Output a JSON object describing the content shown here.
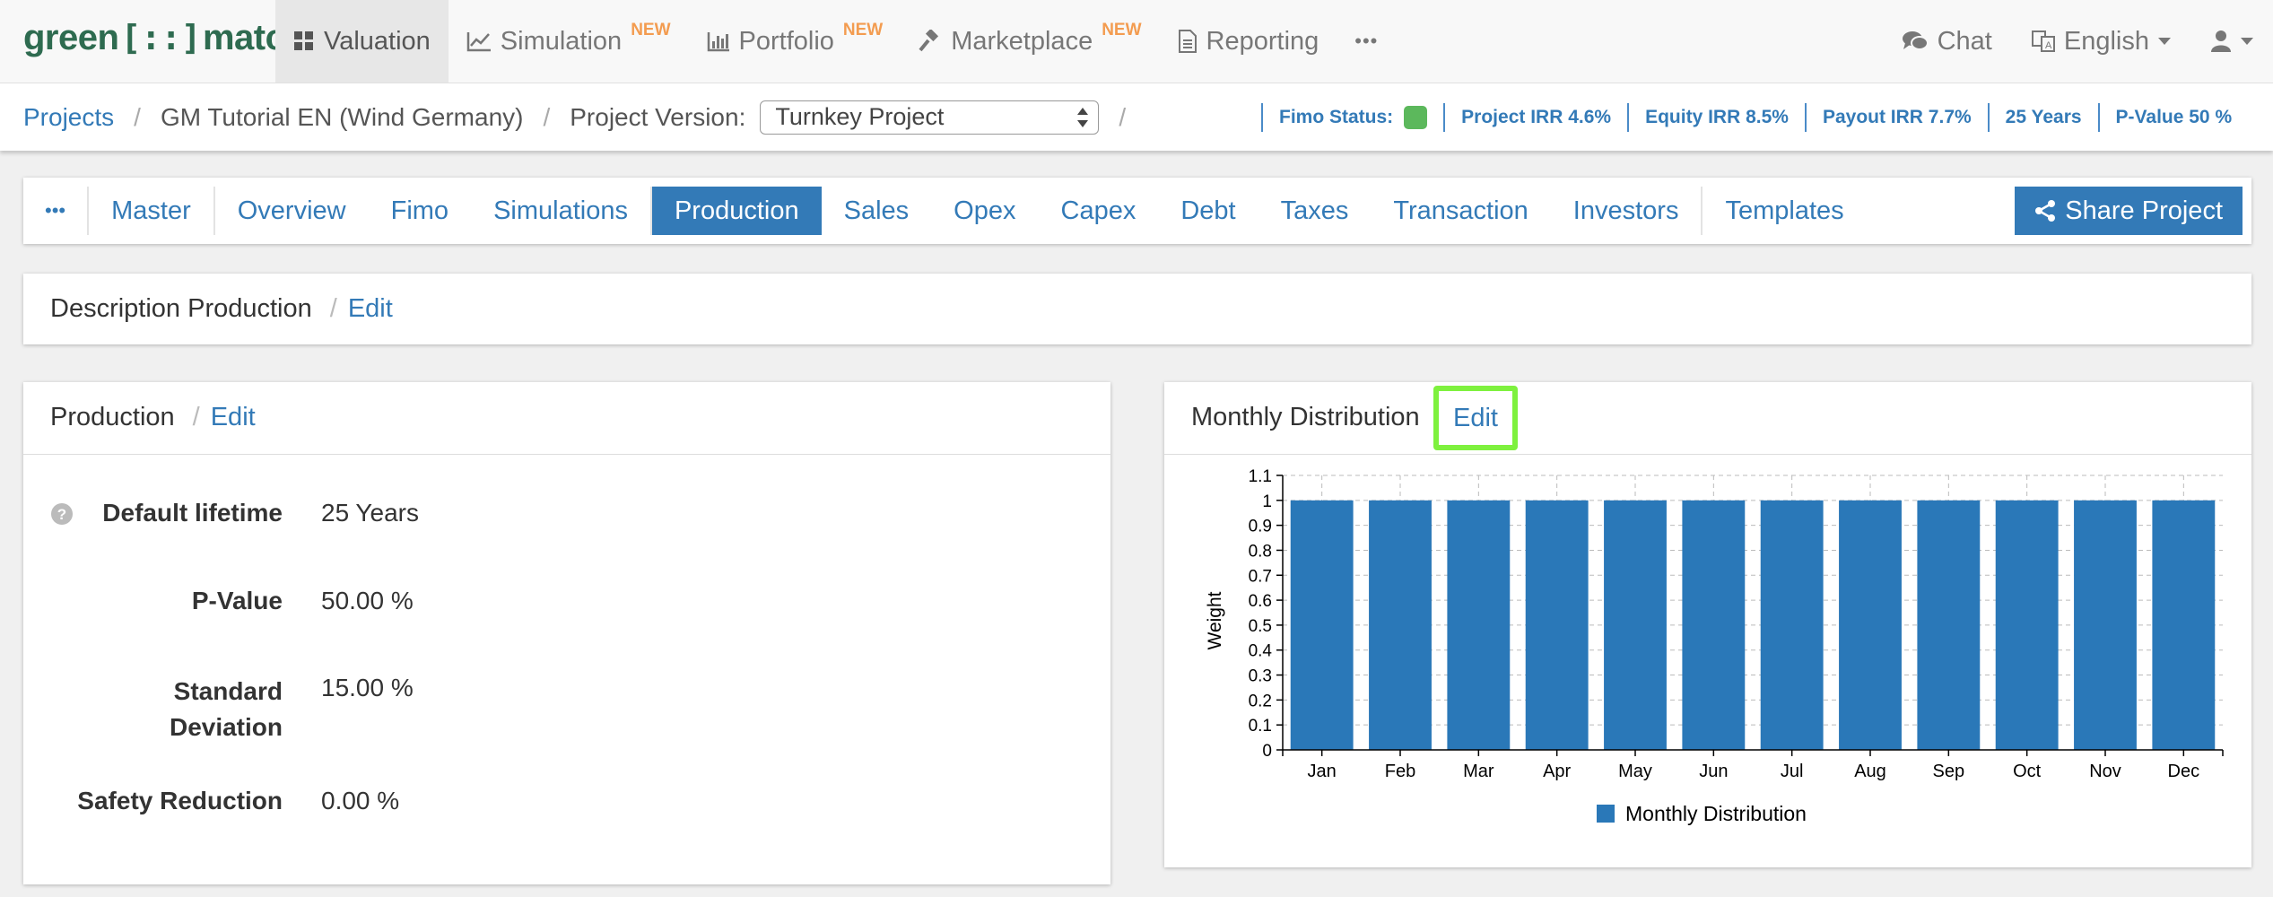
{
  "app": {
    "logo_left": "green",
    "logo_bracket": "[::]",
    "logo_right": "match"
  },
  "topnav": {
    "items": [
      {
        "label": "Valuation",
        "icon": "grid-icon",
        "badge": ""
      },
      {
        "label": "Simulation",
        "icon": "line-chart-icon",
        "badge": "NEW"
      },
      {
        "label": "Portfolio",
        "icon": "bar-chart-icon",
        "badge": "NEW"
      },
      {
        "label": "Marketplace",
        "icon": "gavel-icon",
        "badge": "NEW"
      },
      {
        "label": "Reporting",
        "icon": "document-icon",
        "badge": ""
      },
      {
        "label": "•••",
        "icon": "more-icon",
        "badge": ""
      }
    ],
    "chat_label": "Chat",
    "language_label": "English"
  },
  "breadcrumb": {
    "projects": "Projects",
    "sep": "/",
    "project_name": "GM Tutorial EN (Wind Germany)",
    "version_label": "Project Version:",
    "version_value": "Turnkey Project"
  },
  "kpis": {
    "fimo_status": "Fimo Status:",
    "fimo_status_color": "#5cb85c",
    "project_irr": "Project IRR 4.6%",
    "equity_irr": "Equity IRR 8.5%",
    "payout_irr": "Payout IRR 7.7%",
    "years": "25 Years",
    "p_value": "P-Value 50 %"
  },
  "tabs": {
    "more": "•••",
    "items": [
      "Master",
      "Overview",
      "Fimo",
      "Simulations",
      "Production",
      "Sales",
      "Opex",
      "Capex",
      "Debt",
      "Taxes",
      "Transaction",
      "Investors",
      "Templates"
    ],
    "active": "Production",
    "share_label": "Share Project"
  },
  "description_panel": {
    "title": "Description Production",
    "sep": "/",
    "edit": "Edit"
  },
  "production_panel": {
    "title": "Production",
    "sep": "/",
    "edit": "Edit",
    "fields": {
      "lifetime_label": "Default lifetime",
      "lifetime_value": "25 Years",
      "pvalue_label": "P-Value",
      "pvalue_value": "50.00 %",
      "stddev_label_1": "Standard",
      "stddev_label_2": "Deviation",
      "stddev_value": "15.00 %",
      "safety_label": "Safety Reduction",
      "safety_value": "0.00 %"
    }
  },
  "distribution_panel": {
    "title": "Monthly Distribution",
    "edit": "Edit"
  },
  "chart_data": {
    "type": "bar",
    "categories": [
      "Jan",
      "Feb",
      "Mar",
      "Apr",
      "May",
      "Jun",
      "Jul",
      "Aug",
      "Sep",
      "Oct",
      "Nov",
      "Dec"
    ],
    "series": [
      {
        "name": "Monthly Distribution",
        "values": [
          1,
          1,
          1,
          1,
          1,
          1,
          1,
          1,
          1,
          1,
          1,
          1
        ],
        "color": "#2a78b8"
      }
    ],
    "ylabel": "Weight",
    "xlabel": "",
    "ylim": [
      0,
      1.1
    ],
    "yticks": [
      "0",
      "0.1",
      "0.2",
      "0.3",
      "0.4",
      "0.5",
      "0.6",
      "0.7",
      "0.8",
      "0.9",
      "1",
      "1.1"
    ],
    "grid": true,
    "legend": "bottom-center"
  }
}
